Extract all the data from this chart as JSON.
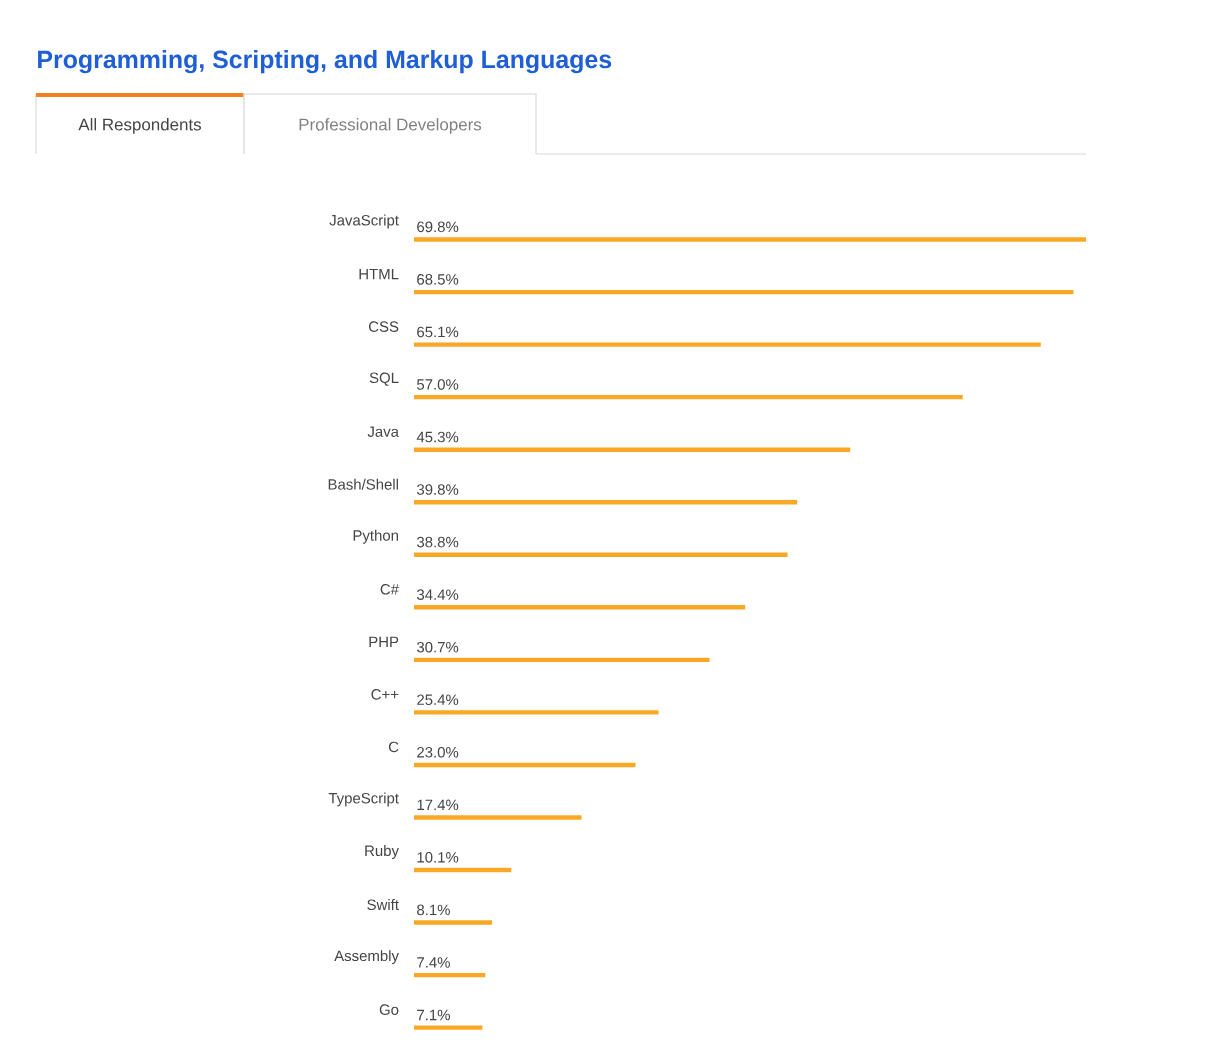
{
  "chart_data": {
    "type": "bar",
    "orientation": "horizontal",
    "title": "Programming, Scripting, and Markup Languages",
    "annotations": [
      "All Respondents",
      "Professional Developers"
    ],
    "categories": [
      "JavaScript",
      "HTML",
      "CSS",
      "SQL",
      "Java",
      "Bash/Shell",
      "Python",
      "C#",
      "PHP",
      "C++",
      "C",
      "TypeScript",
      "Ruby",
      "Swift",
      "Assembly",
      "Go"
    ],
    "values": [
      69.8,
      68.5,
      65.1,
      57.0,
      45.3,
      39.8,
      38.8,
      34.4,
      30.7,
      25.4,
      23.0,
      17.4,
      10.1,
      8.1,
      7.4,
      7.1
    ],
    "value_labels": [
      "69.8%",
      "68.5%",
      "65.1%",
      "57.0%",
      "45.3%",
      "39.8%",
      "38.8%",
      "34.4%",
      "30.7%",
      "25.4%",
      "23.0%",
      "17.4%",
      "10.1%",
      "8.1%",
      "7.4%",
      "7.1%"
    ],
    "color": "#f9a825"
  }
}
